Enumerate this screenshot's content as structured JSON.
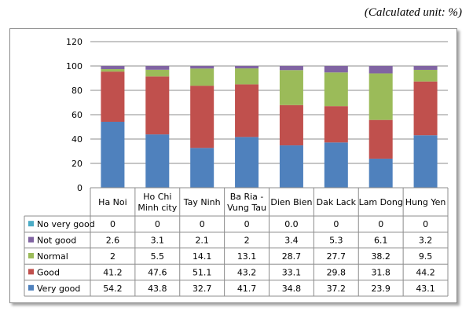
{
  "unit_note": "(Calculated unit: %)",
  "colors": {
    "very_good": "#4F81BD",
    "good": "#C0504D",
    "normal": "#9BBB59",
    "not_good": "#8064A2",
    "no_very_good": "#4BACC6"
  },
  "chart_data": {
    "type": "bar",
    "stacked": true,
    "title": "",
    "xlabel": "",
    "ylabel": "",
    "ylim": [
      0,
      120
    ],
    "yticks": [
      0,
      20,
      40,
      60,
      80,
      100,
      120
    ],
    "grid": true,
    "legend": "data-table",
    "categories": [
      [
        "Ha Noi"
      ],
      [
        "Ho Chi",
        "Minh city"
      ],
      [
        "Tay Ninh"
      ],
      [
        "Ba Ria -",
        "Vung Tau"
      ],
      [
        "Dien Bien"
      ],
      [
        "Dak Lack"
      ],
      [
        "Lam Dong"
      ],
      [
        "Hung Yen"
      ]
    ],
    "series": [
      {
        "name": "Very good",
        "color": "#4F81BD",
        "values": [
          54.2,
          43.8,
          32.7,
          41.7,
          34.8,
          37.2,
          23.9,
          43.1
        ],
        "labels": [
          "54.2",
          "43.8",
          "32.7",
          "41.7",
          "34.8",
          "37.2",
          "23.9",
          "43.1"
        ]
      },
      {
        "name": "Good",
        "color": "#C0504D",
        "values": [
          41.2,
          47.6,
          51.1,
          43.2,
          33.1,
          29.8,
          31.8,
          44.2
        ],
        "labels": [
          "41.2",
          "47.6",
          "51.1",
          "43.2",
          "33.1",
          "29.8",
          "31.8",
          "44.2"
        ]
      },
      {
        "name": "Normal",
        "color": "#9BBB59",
        "values": [
          2,
          5.5,
          14.1,
          13.1,
          28.7,
          27.7,
          38.2,
          9.5
        ],
        "labels": [
          "2",
          "5.5",
          "14.1",
          "13.1",
          "28.7",
          "27.7",
          "38.2",
          "9.5"
        ]
      },
      {
        "name": "Not good",
        "color": "#8064A2",
        "values": [
          2.6,
          3.1,
          2.1,
          2,
          3.4,
          5.3,
          6.1,
          3.2
        ],
        "labels": [
          "2.6",
          "3.1",
          "2.1",
          "2",
          "3.4",
          "5.3",
          "6.1",
          "3.2"
        ]
      },
      {
        "name": "No very good",
        "color": "#4BACC6",
        "values": [
          0,
          0,
          0,
          0,
          0,
          0,
          0,
          0
        ],
        "labels": [
          "0",
          "0",
          "0",
          "0",
          "0.0",
          "0",
          "0",
          "0"
        ]
      }
    ]
  }
}
